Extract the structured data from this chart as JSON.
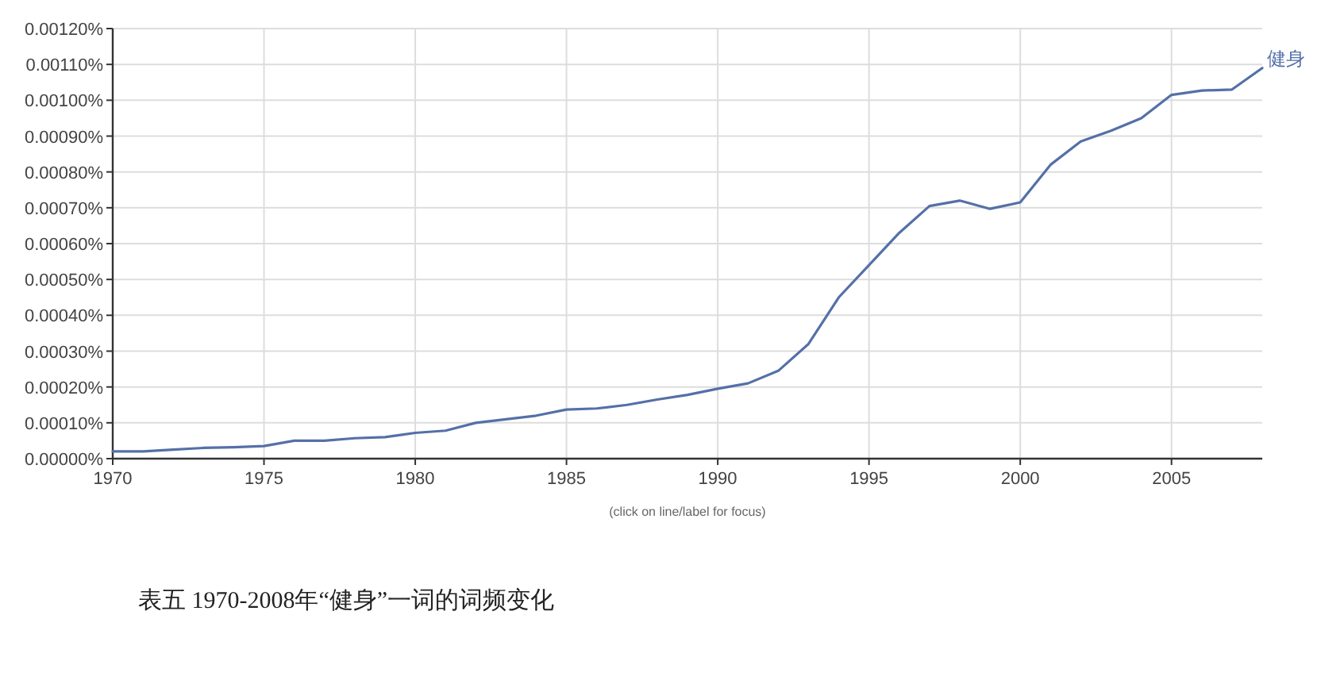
{
  "chart_data": {
    "type": "line",
    "xlim": [
      1970,
      2008
    ],
    "ylim": [
      0,
      0.0012
    ],
    "xticks": [
      1970,
      1975,
      1980,
      1985,
      1990,
      1995,
      2000,
      2005
    ],
    "yticks": [
      {
        "value": 0,
        "label": "0.00000%"
      },
      {
        "value": 0.0001,
        "label": "0.00010%"
      },
      {
        "value": 0.0002,
        "label": "0.00020%"
      },
      {
        "value": 0.0003,
        "label": "0.00030%"
      },
      {
        "value": 0.0004,
        "label": "0.00040%"
      },
      {
        "value": 0.0005,
        "label": "0.00050%"
      },
      {
        "value": 0.0006,
        "label": "0.00060%"
      },
      {
        "value": 0.0007,
        "label": "0.00070%"
      },
      {
        "value": 0.0008,
        "label": "0.00080%"
      },
      {
        "value": 0.0009,
        "label": "0.00090%"
      },
      {
        "value": 0.001,
        "label": "0.00100%"
      },
      {
        "value": 0.0011,
        "label": "0.00110%"
      },
      {
        "value": 0.0012,
        "label": "0.00120%"
      }
    ],
    "x": [
      1970,
      1971,
      1972,
      1973,
      1974,
      1975,
      1976,
      1977,
      1978,
      1979,
      1980,
      1981,
      1982,
      1983,
      1984,
      1985,
      1986,
      1987,
      1988,
      1989,
      1990,
      1991,
      1992,
      1993,
      1994,
      1995,
      1996,
      1997,
      1998,
      1999,
      2000,
      2001,
      2002,
      2003,
      2004,
      2005,
      2006,
      2007,
      2008
    ],
    "series": [
      {
        "name": "健身",
        "color": "#5470a8",
        "values": [
          2e-05,
          2e-05,
          2.5e-05,
          3e-05,
          3.2e-05,
          3.5e-05,
          5e-05,
          5e-05,
          5.7e-05,
          6e-05,
          7.2e-05,
          7.8e-05,
          0.0001,
          0.00011,
          0.00012,
          0.000137,
          0.00014,
          0.00015,
          0.000165,
          0.000178,
          0.000195,
          0.00021,
          0.000245,
          0.00032,
          0.00045,
          0.00054,
          0.00063,
          0.000705,
          0.00072,
          0.000697,
          0.000715,
          0.00082,
          0.000885,
          0.000915,
          0.00095,
          0.001015,
          0.001027,
          0.00103,
          0.00109
        ]
      }
    ],
    "grid": true,
    "marker": "none",
    "line_style": "solid",
    "annotations": [
      "(click on line/label for focus)",
      "表五 1970-2008年“健身”一词的词频变化"
    ]
  }
}
